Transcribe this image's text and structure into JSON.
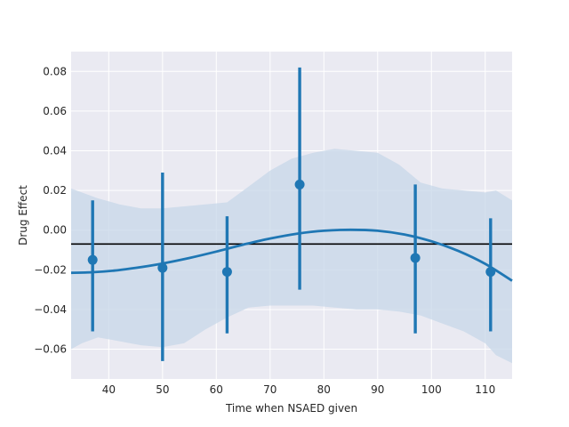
{
  "chart_data": {
    "type": "scatter",
    "title": "",
    "xlabel": "Time when NSAED given",
    "ylabel": "Drug Effect",
    "xlim": [
      33,
      115
    ],
    "ylim": [
      -0.075,
      0.09
    ],
    "grid": true,
    "x_ticks": [
      40,
      50,
      60,
      70,
      80,
      90,
      100,
      110
    ],
    "y_ticks": [
      -0.06,
      -0.04,
      -0.02,
      0.0,
      0.02,
      0.04,
      0.06,
      0.08
    ],
    "x_tick_labels": [
      "40",
      "50",
      "60",
      "70",
      "80",
      "90",
      "100",
      "110"
    ],
    "y_tick_labels": [
      "−0.06",
      "−0.04",
      "−0.02",
      "0.00",
      "0.02",
      "0.04",
      "0.06",
      "0.08"
    ],
    "points": [
      {
        "x": 37,
        "y": -0.015,
        "ci": [
          -0.051,
          0.015
        ]
      },
      {
        "x": 50,
        "y": -0.019,
        "ci": [
          -0.066,
          0.029
        ]
      },
      {
        "x": 62,
        "y": -0.021,
        "ci": [
          -0.052,
          0.007
        ]
      },
      {
        "x": 75.5,
        "y": 0.023,
        "ci": [
          -0.03,
          0.082
        ]
      },
      {
        "x": 97,
        "y": -0.014,
        "ci": [
          -0.052,
          0.023
        ]
      },
      {
        "x": 111,
        "y": -0.021,
        "ci": [
          -0.051,
          0.006
        ]
      }
    ],
    "fit_curve": {
      "x": [
        33,
        37,
        41,
        45,
        50,
        55,
        60,
        65,
        70,
        75,
        80,
        85,
        90,
        95,
        100,
        105,
        110,
        115
      ],
      "y": [
        -0.0215,
        -0.0212,
        -0.0204,
        -0.019,
        -0.0168,
        -0.014,
        -0.0108,
        -0.0073,
        -0.0042,
        -0.0018,
        -0.0003,
        0.0002,
        -0.0003,
        -0.0022,
        -0.0056,
        -0.0105,
        -0.017,
        -0.0255
      ]
    },
    "confidence_band": {
      "x": [
        33,
        35,
        38,
        42,
        46,
        50,
        54,
        58,
        62,
        66,
        70,
        74,
        78,
        82,
        86,
        90,
        94,
        98,
        102,
        106,
        110,
        112,
        115
      ],
      "upper": [
        0.021,
        0.019,
        0.016,
        0.013,
        0.011,
        0.011,
        0.012,
        0.013,
        0.014,
        0.022,
        0.03,
        0.036,
        0.039,
        0.041,
        0.04,
        0.039,
        0.033,
        0.024,
        0.021,
        0.02,
        0.019,
        0.02,
        0.015
      ],
      "lower": [
        -0.06,
        -0.057,
        -0.054,
        -0.056,
        -0.058,
        -0.059,
        -0.057,
        -0.05,
        -0.044,
        -0.039,
        -0.038,
        -0.038,
        -0.038,
        -0.039,
        -0.04,
        -0.04,
        -0.041,
        -0.043,
        -0.047,
        -0.051,
        -0.057,
        -0.063,
        -0.067
      ]
    },
    "reference_line": {
      "y": -0.007
    },
    "colors": {
      "series": "#1f77b4",
      "band": "#c7d7e8",
      "reference": "#000000",
      "plot_bg": "#eaeaf2",
      "grid": "#ffffff",
      "text": "#262626"
    }
  }
}
